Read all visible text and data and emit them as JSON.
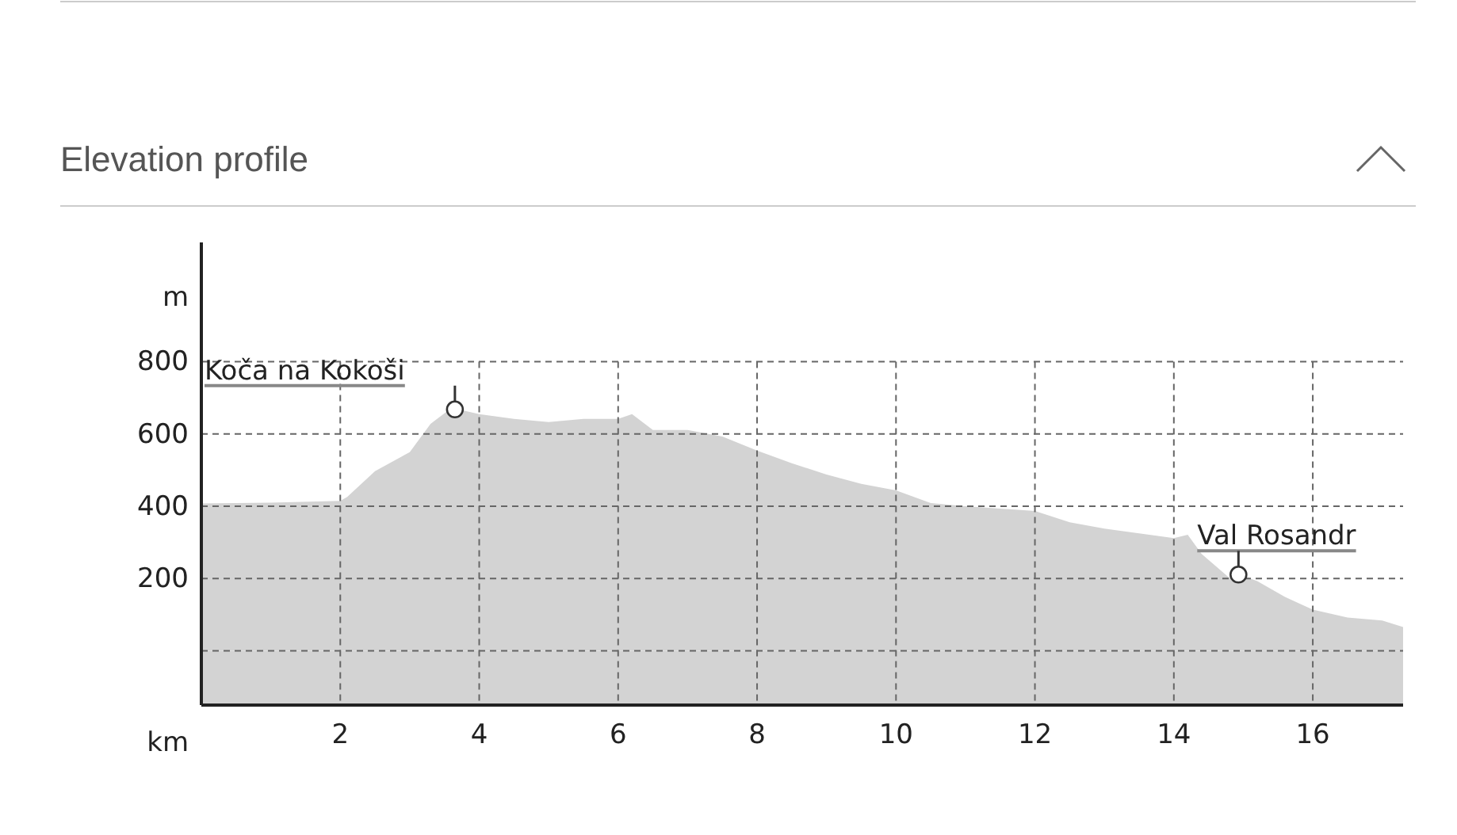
{
  "chart_data": {
    "type": "area",
    "title": "Elevation profile",
    "xlabel": "km",
    "ylabel": "m",
    "x": [
      0,
      1,
      2,
      2.1,
      2.5,
      3,
      3.3,
      3.6,
      3.7,
      4,
      4.5,
      5,
      5.5,
      6,
      6.2,
      6.5,
      7,
      7.5,
      8,
      8.5,
      9,
      9.5,
      10,
      10.5,
      11,
      12,
      12.5,
      13,
      13.5,
      14,
      14.2,
      14.4,
      14.8,
      15,
      15.2,
      15.6,
      16,
      16.5,
      17,
      17.3
    ],
    "series": [
      {
        "color": "#d3d3d3",
        "values": [
          408,
          410,
          415,
          426,
          497,
          550,
          628,
          672,
          668,
          655,
          642,
          633,
          642,
          642,
          655,
          611,
          611,
          593,
          554,
          519,
          488,
          462,
          444,
          409,
          400,
          387,
          356,
          338,
          325,
          312,
          321,
          268,
          202,
          207,
          193,
          149,
          114,
          92,
          84,
          66
        ]
      }
    ],
    "xlim": [
      0,
      17.3
    ],
    "ylim": [
      -150,
      1130
    ],
    "xticks": [
      2,
      4,
      6,
      8,
      10,
      12,
      14,
      16
    ],
    "yticks": [
      {
        "value": 0,
        "label": null
      },
      200,
      400,
      600,
      800
    ],
    "grid": true,
    "annotations": [
      {
        "text": "Koča na Kokoši",
        "x": 3.65,
        "y": 668
      },
      {
        "text": "Val Rosandr",
        "x": 14.93,
        "y": 211
      }
    ]
  }
}
